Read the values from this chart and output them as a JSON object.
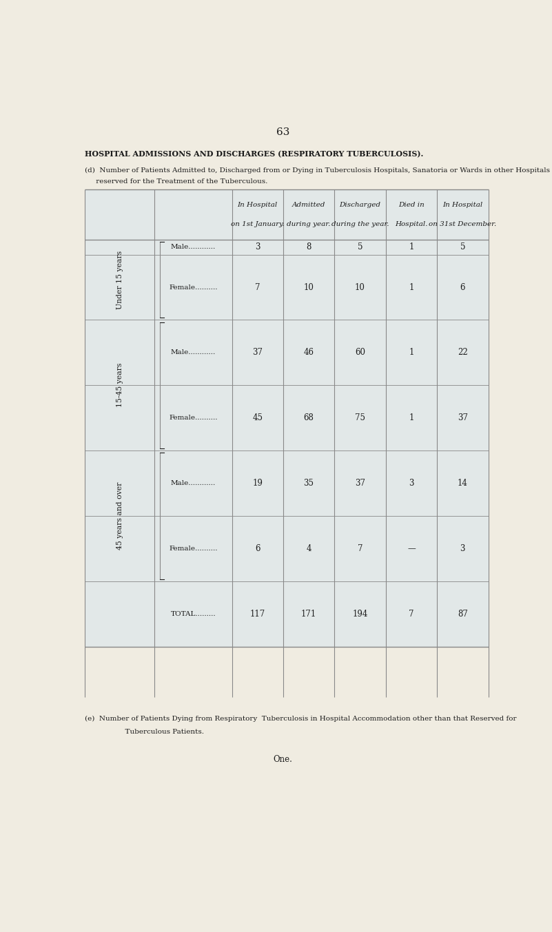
{
  "page_number": "63",
  "main_title": "HOSPITAL ADMISSIONS AND DISCHARGES (RESPIRATORY TUBERCULOSIS).",
  "subtitle_d_line1": "(d)  Number of Patients Admitted to, Discharged from or Dying in Tuberculosis Hospitals, Sanatoria or Wards in other Hospitals",
  "subtitle_d_line2": "     reserved for the Treatment of the Tuberculous.",
  "col_headers": [
    [
      "In Hospital",
      "on 1st January."
    ],
    [
      "Admitted",
      "during year."
    ],
    [
      "Discharged",
      "during the year."
    ],
    [
      "Died in",
      "Hospital."
    ],
    [
      "In Hospital",
      "on 31st December."
    ]
  ],
  "age_group_labels": [
    "Under 15 years",
    "15-45 years",
    "45 years and over"
  ],
  "male_label": "Male............",
  "female_label": "Female..........",
  "total_label": "TOTAL.........",
  "in_hospital_jan": [
    "3",
    "7",
    "37",
    "45",
    "19",
    "6",
    "117"
  ],
  "admitted": [
    "8",
    "10",
    "46",
    "68",
    "35",
    "4",
    "171"
  ],
  "discharged": [
    "5",
    "10",
    "60",
    "75",
    "37",
    "7",
    "194"
  ],
  "died": [
    "1",
    "1",
    "1",
    "1",
    "3",
    "—",
    "7"
  ],
  "in_hospital_dec": [
    "5",
    "6",
    "22",
    "37",
    "14",
    "3",
    "87"
  ],
  "footnote_e_line1": "(e)  Number of Patients Dying from Respiratory  Tuberculosis in Hospital Accommodation other than that Reserved for",
  "footnote_e_line2": "      Tuberculous Patients.",
  "footnote_one": "One.",
  "bg_color": "#f0ece1",
  "text_color": "#1c1c1c",
  "table_cell_bg": "#d5e5f0",
  "line_color": "#888888"
}
